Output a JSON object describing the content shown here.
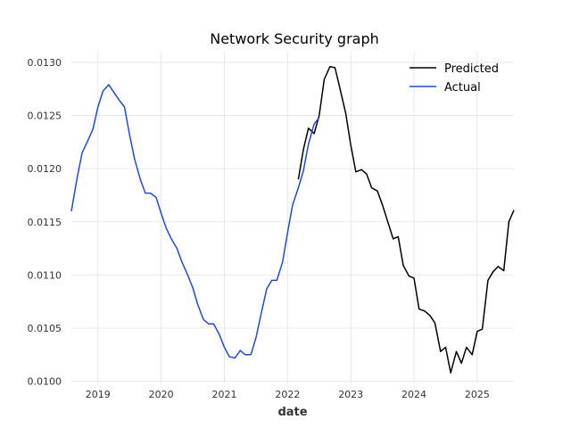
{
  "chart_data": {
    "type": "line",
    "title": "Network Security graph",
    "xlabel": "date",
    "ylabel": "",
    "xlim": [
      2018.58,
      2025.58
    ],
    "ylim": [
      0.00998,
      0.0131
    ],
    "x_ticks": [
      2019,
      2020,
      2021,
      2022,
      2023,
      2024,
      2025
    ],
    "x_tick_labels": [
      "2019",
      "2020",
      "2021",
      "2022",
      "2023",
      "2024",
      "2025"
    ],
    "y_ticks": [
      0.01,
      0.0105,
      0.011,
      0.0115,
      0.012,
      0.0125,
      0.013
    ],
    "y_tick_labels": [
      "0.0100",
      "0.0105",
      "0.0110",
      "0.0115",
      "0.0120",
      "0.0125",
      "0.0130"
    ],
    "grid": true,
    "legend_position": "top-right",
    "series": [
      {
        "name": "Predicted",
        "color": "#000000",
        "points": [
          [
            2022.17,
            0.0119
          ],
          [
            2022.25,
            0.01218
          ],
          [
            2022.33,
            0.01238
          ],
          [
            2022.42,
            0.01233
          ],
          [
            2022.5,
            0.0125
          ],
          [
            2022.58,
            0.01284
          ],
          [
            2022.67,
            0.01296
          ],
          [
            2022.75,
            0.01295
          ],
          [
            2022.83,
            0.01275
          ],
          [
            2022.92,
            0.01252
          ],
          [
            2023.0,
            0.01222
          ],
          [
            2023.08,
            0.01197
          ],
          [
            2023.17,
            0.01199
          ],
          [
            2023.25,
            0.01195
          ],
          [
            2023.33,
            0.01182
          ],
          [
            2023.42,
            0.01179
          ],
          [
            2023.5,
            0.01166
          ],
          [
            2023.58,
            0.01151
          ],
          [
            2023.67,
            0.01134
          ],
          [
            2023.75,
            0.01136
          ],
          [
            2023.83,
            0.01109
          ],
          [
            2023.92,
            0.01099
          ],
          [
            2024.0,
            0.01097
          ],
          [
            2024.08,
            0.01068
          ],
          [
            2024.17,
            0.01066
          ],
          [
            2024.25,
            0.01062
          ],
          [
            2024.33,
            0.01055
          ],
          [
            2024.42,
            0.01028
          ],
          [
            2024.5,
            0.01032
          ],
          [
            2024.58,
            0.01008
          ],
          [
            2024.67,
            0.01028
          ],
          [
            2024.75,
            0.01017
          ],
          [
            2024.83,
            0.01032
          ],
          [
            2024.92,
            0.01025
          ],
          [
            2025.0,
            0.01047
          ],
          [
            2025.08,
            0.01049
          ],
          [
            2025.17,
            0.01095
          ],
          [
            2025.25,
            0.01103
          ],
          [
            2025.33,
            0.01108
          ],
          [
            2025.42,
            0.01104
          ],
          [
            2025.5,
            0.0115
          ],
          [
            2025.58,
            0.01161
          ]
        ]
      },
      {
        "name": "Actual",
        "color": "#1f48e0",
        "points": [
          [
            2018.58,
            0.0116
          ],
          [
            2018.67,
            0.01191
          ],
          [
            2018.75,
            0.01215
          ],
          [
            2018.83,
            0.01225
          ],
          [
            2018.92,
            0.01237
          ],
          [
            2019.0,
            0.01258
          ],
          [
            2019.08,
            0.01273
          ],
          [
            2019.17,
            0.01279
          ],
          [
            2019.25,
            0.01272
          ],
          [
            2019.33,
            0.01265
          ],
          [
            2019.42,
            0.01258
          ],
          [
            2019.5,
            0.01232
          ],
          [
            2019.58,
            0.01209
          ],
          [
            2019.67,
            0.0119
          ],
          [
            2019.75,
            0.01177
          ],
          [
            2019.83,
            0.01177
          ],
          [
            2019.92,
            0.01173
          ],
          [
            2020.0,
            0.01158
          ],
          [
            2020.08,
            0.01144
          ],
          [
            2020.17,
            0.01133
          ],
          [
            2020.25,
            0.01125
          ],
          [
            2020.33,
            0.01112
          ],
          [
            2020.42,
            0.011
          ],
          [
            2020.5,
            0.01088
          ],
          [
            2020.58,
            0.01072
          ],
          [
            2020.67,
            0.01058
          ],
          [
            2020.75,
            0.01054
          ],
          [
            2020.83,
            0.01054
          ],
          [
            2020.92,
            0.01044
          ],
          [
            2021.0,
            0.01032
          ],
          [
            2021.08,
            0.01023
          ],
          [
            2021.17,
            0.01022
          ],
          [
            2021.25,
            0.01029
          ],
          [
            2021.33,
            0.01025
          ],
          [
            2021.42,
            0.01025
          ],
          [
            2021.5,
            0.01041
          ],
          [
            2021.58,
            0.01063
          ],
          [
            2021.67,
            0.01087
          ],
          [
            2021.75,
            0.01095
          ],
          [
            2021.83,
            0.01095
          ],
          [
            2021.92,
            0.01112
          ],
          [
            2022.0,
            0.0114
          ],
          [
            2022.08,
            0.01166
          ],
          [
            2022.17,
            0.01182
          ],
          [
            2022.25,
            0.01198
          ],
          [
            2022.33,
            0.01223
          ],
          [
            2022.42,
            0.01242
          ],
          [
            2022.5,
            0.01248
          ]
        ]
      }
    ]
  }
}
